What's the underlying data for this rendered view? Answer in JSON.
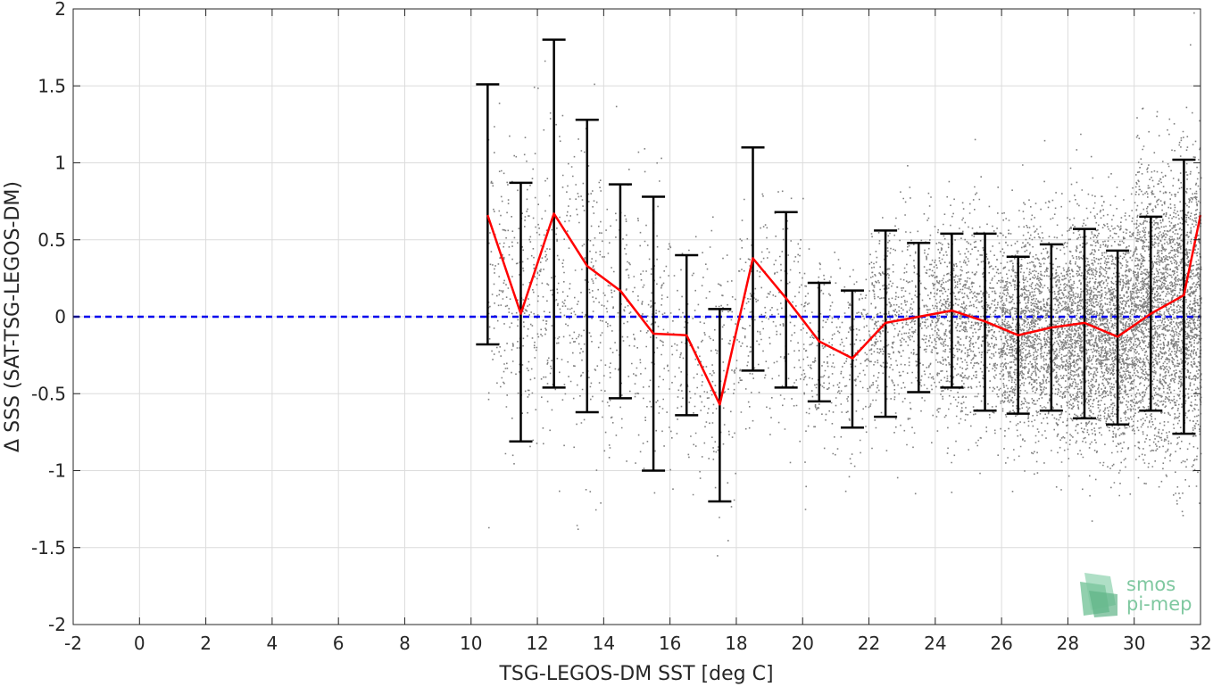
{
  "chart_data": {
    "type": "scatter",
    "xlabel": "TSG-LEGOS-DM SST [deg C]",
    "ylabel": "Δ SSS (SAT-TSG-LEGOS-DM)",
    "xlim": [
      -2,
      32
    ],
    "ylim": [
      -2,
      2
    ],
    "xticks": [
      "-2",
      "0",
      "2",
      "4",
      "6",
      "8",
      "10",
      "12",
      "14",
      "16",
      "18",
      "20",
      "22",
      "24",
      "26",
      "28",
      "30",
      "32"
    ],
    "yticks": [
      "-2",
      "-1.5",
      "-1",
      "-0.5",
      "0",
      "0.5",
      "1",
      "1.5",
      "2"
    ],
    "grid": true,
    "zero_line": {
      "y": 0,
      "style": "dashed",
      "color": "#0000ee"
    },
    "scatter_color": "#808080",
    "mean_line_color": "#ff0000",
    "errorbar_color": "#000000",
    "binned_stats": [
      {
        "x": 10.5,
        "mean": 0.66,
        "lower": -0.18,
        "upper": 1.51
      },
      {
        "x": 11.5,
        "mean": 0.02,
        "lower": -0.81,
        "upper": 0.87
      },
      {
        "x": 12.5,
        "mean": 0.67,
        "lower": -0.46,
        "upper": 1.8
      },
      {
        "x": 13.5,
        "mean": 0.33,
        "lower": -0.62,
        "upper": 1.28
      },
      {
        "x": 14.5,
        "mean": 0.17,
        "lower": -0.53,
        "upper": 0.86
      },
      {
        "x": 15.5,
        "mean": -0.11,
        "lower": -1.0,
        "upper": 0.78
      },
      {
        "x": 16.5,
        "mean": -0.12,
        "lower": -0.64,
        "upper": 0.4
      },
      {
        "x": 17.5,
        "mean": -0.57,
        "lower": -1.2,
        "upper": 0.05
      },
      {
        "x": 18.5,
        "mean": 0.38,
        "lower": -0.35,
        "upper": 1.1
      },
      {
        "x": 19.5,
        "mean": 0.12,
        "lower": -0.46,
        "upper": 0.68
      },
      {
        "x": 20.5,
        "mean": -0.16,
        "lower": -0.55,
        "upper": 0.22
      },
      {
        "x": 21.5,
        "mean": -0.27,
        "lower": -0.72,
        "upper": 0.17
      },
      {
        "x": 22.5,
        "mean": -0.04,
        "lower": -0.65,
        "upper": 0.56
      },
      {
        "x": 23.5,
        "mean": 0.0,
        "lower": -0.49,
        "upper": 0.48
      },
      {
        "x": 24.5,
        "mean": 0.04,
        "lower": -0.46,
        "upper": 0.54
      },
      {
        "x": 25.5,
        "mean": -0.03,
        "lower": -0.61,
        "upper": 0.54
      },
      {
        "x": 26.5,
        "mean": -0.12,
        "lower": -0.63,
        "upper": 0.39
      },
      {
        "x": 27.5,
        "mean": -0.07,
        "lower": -0.61,
        "upper": 0.47
      },
      {
        "x": 28.5,
        "mean": -0.04,
        "lower": -0.66,
        "upper": 0.57
      },
      {
        "x": 29.5,
        "mean": -0.13,
        "lower": -0.7,
        "upper": 0.43
      },
      {
        "x": 30.5,
        "mean": 0.02,
        "lower": -0.61,
        "upper": 0.65
      },
      {
        "x": 31.5,
        "mean": 0.14,
        "lower": -0.76,
        "upper": 1.02
      },
      {
        "x": 32.0,
        "mean": 0.66
      }
    ],
    "scatter_density": [
      {
        "x_range": [
          10.5,
          12
        ],
        "count": 260,
        "y_center": 0.2,
        "y_spread": 0.75
      },
      {
        "x_range": [
          12,
          14
        ],
        "count": 320,
        "y_center": 0.1,
        "y_spread": 0.85
      },
      {
        "x_range": [
          14,
          16
        ],
        "count": 260,
        "y_center": -0.05,
        "y_spread": 0.75
      },
      {
        "x_range": [
          16,
          18
        ],
        "count": 220,
        "y_center": -0.35,
        "y_spread": 0.7
      },
      {
        "x_range": [
          18,
          20
        ],
        "count": 240,
        "y_center": 0.0,
        "y_spread": 0.6
      },
      {
        "x_range": [
          20,
          22
        ],
        "count": 320,
        "y_center": -0.25,
        "y_spread": 0.5
      },
      {
        "x_range": [
          22,
          24
        ],
        "count": 620,
        "y_center": -0.05,
        "y_spread": 0.55
      },
      {
        "x_range": [
          24,
          26
        ],
        "count": 1000,
        "y_center": -0.02,
        "y_spread": 0.55
      },
      {
        "x_range": [
          26,
          28
        ],
        "count": 1800,
        "y_center": -0.1,
        "y_spread": 0.55
      },
      {
        "x_range": [
          28,
          30
        ],
        "count": 2400,
        "y_center": -0.1,
        "y_spread": 0.6
      },
      {
        "x_range": [
          30,
          32
        ],
        "count": 2600,
        "y_center": 0.05,
        "y_spread": 0.75
      }
    ]
  },
  "logo": {
    "line1": "smos",
    "line2": "pi-mep",
    "color": "#7fc8a0"
  }
}
